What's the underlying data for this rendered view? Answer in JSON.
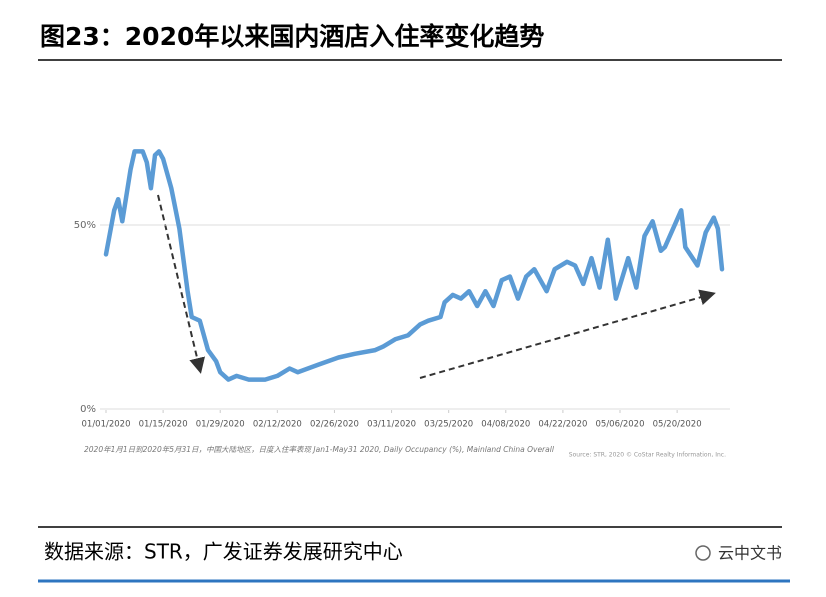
{
  "chart_data": {
    "type": "line",
    "title": "图23：2020年以来国内酒店入住率变化趋势",
    "note": "2020年1月1日到2020年5月31日，中国大陆地区，日度入住率表现 Jan1-May31 2020, Daily Occupancy (%), Mainland China Overall",
    "credit": "Source: STR, 2020 © CoStar Realty Information, Inc.",
    "source": "数据来源：STR，广发证券发展研究中心",
    "x": [
      "01/01/2020",
      "01/03/2020",
      "01/04/2020",
      "01/05/2020",
      "01/07/2020",
      "01/08/2020",
      "01/10/2020",
      "01/11/2020",
      "01/12/2020",
      "01/13/2020",
      "01/14/2020",
      "01/15/2020",
      "01/17/2020",
      "01/19/2020",
      "01/21/2020",
      "01/22/2020",
      "01/24/2020",
      "01/26/2020",
      "01/28/2020",
      "01/29/2020",
      "01/31/2020",
      "02/02/2020",
      "02/05/2020",
      "02/09/2020",
      "02/12/2020",
      "02/15/2020",
      "02/17/2020",
      "02/22/2020",
      "02/27/2020",
      "03/02/2020",
      "03/07/2020",
      "03/09/2020",
      "03/12/2020",
      "03/15/2020",
      "03/18/2020",
      "03/20/2020",
      "03/23/2020",
      "03/24/2020",
      "03/26/2020",
      "03/28/2020",
      "03/30/2020",
      "04/01/2020",
      "04/03/2020",
      "04/05/2020",
      "04/07/2020",
      "04/09/2020",
      "04/11/2020",
      "04/13/2020",
      "04/15/2020",
      "04/18/2020",
      "04/20/2020",
      "04/23/2020",
      "04/25/2020",
      "04/27/2020",
      "04/29/2020",
      "05/01/2020",
      "05/03/2020",
      "05/05/2020",
      "05/08/2020",
      "05/10/2020",
      "05/12/2020",
      "05/14/2020",
      "05/16/2020",
      "05/17/2020",
      "05/21/2020",
      "05/22/2020",
      "05/25/2020",
      "05/27/2020",
      "05/29/2020",
      "05/30/2020",
      "05/31/2020"
    ],
    "series": [
      {
        "color": "#5b9bd5",
        "values": [
          42,
          54,
          57,
          51,
          65,
          70,
          70,
          67,
          60,
          69,
          70,
          68,
          60,
          49,
          32,
          25,
          24,
          16,
          13,
          10,
          8,
          9,
          8,
          8,
          9,
          11,
          10,
          12,
          14,
          15,
          16,
          17,
          19,
          20,
          23,
          24,
          25,
          29,
          31,
          30,
          32,
          28,
          32,
          28,
          35,
          36,
          30,
          36,
          38,
          32,
          38,
          40,
          39,
          34,
          41,
          33,
          46,
          30,
          41,
          33,
          47,
          51,
          43,
          44,
          54,
          44,
          39,
          48,
          52,
          49,
          38
        ]
      }
    ],
    "xlim": [
      "01/01/2020",
      "05/31/2020"
    ],
    "xticks": [
      "01/01/2020",
      "01/15/2020",
      "01/29/2020",
      "02/12/2020",
      "02/26/2020",
      "03/11/2020",
      "03/25/2020",
      "04/08/2020",
      "04/22/2020",
      "05/06/2020",
      "05/20/2020"
    ],
    "ylim": [
      0,
      100
    ],
    "yticks": [
      {
        "value": 0,
        "label": "0%"
      },
      {
        "value": 50,
        "label": "50%"
      }
    ],
    "grid": true
  },
  "watermark": "云中文书"
}
